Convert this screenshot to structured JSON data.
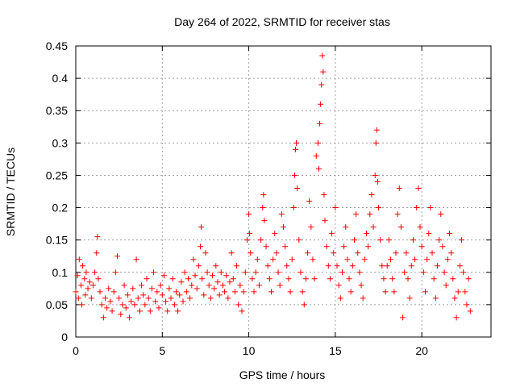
{
  "chart_data": {
    "type": "scatter",
    "title": "Day 264 of 2022, SRMTID for receiver stas",
    "xlabel": "GPS time / hours",
    "ylabel": "SRMTID / TECUs",
    "xlim": [
      0,
      24
    ],
    "ylim": [
      0,
      0.45
    ],
    "grid": true,
    "marker": "+",
    "marker_color": "#ff0000",
    "x_ticks": [
      0,
      5,
      10,
      15,
      20
    ],
    "x_tick_labels": [
      "0",
      "5",
      "10",
      "15",
      "20"
    ],
    "y_ticks": [
      0,
      0.05,
      0.1,
      0.15,
      0.2,
      0.25,
      0.3,
      0.35,
      0.4,
      0.45
    ],
    "y_tick_labels": [
      "0",
      "0.05",
      "0.1",
      "0.15",
      "0.2",
      "0.25",
      "0.3",
      "0.35",
      "0.4",
      "0.45"
    ],
    "series": [
      {
        "name": "SRMTID",
        "points": [
          [
            0.0,
            0.07
          ],
          [
            0.1,
            0.095
          ],
          [
            0.15,
            0.06
          ],
          [
            0.2,
            0.12
          ],
          [
            0.3,
            0.08
          ],
          [
            0.35,
            0.05
          ],
          [
            0.4,
            0.11
          ],
          [
            0.5,
            0.09
          ],
          [
            0.55,
            0.065
          ],
          [
            0.6,
            0.1
          ],
          [
            0.7,
            0.075
          ],
          [
            0.8,
            0.085
          ],
          [
            0.9,
            0.06
          ],
          [
            1.0,
            0.08
          ],
          [
            1.1,
            0.1
          ],
          [
            1.2,
            0.13
          ],
          [
            1.25,
            0.155
          ],
          [
            1.3,
            0.09
          ],
          [
            1.4,
            0.07
          ],
          [
            1.5,
            0.05
          ],
          [
            1.6,
            0.03
          ],
          [
            1.7,
            0.06
          ],
          [
            1.8,
            0.045
          ],
          [
            1.9,
            0.075
          ],
          [
            2.0,
            0.055
          ],
          [
            2.1,
            0.04
          ],
          [
            2.2,
            0.07
          ],
          [
            2.3,
            0.1
          ],
          [
            2.4,
            0.125
          ],
          [
            2.5,
            0.06
          ],
          [
            2.6,
            0.035
          ],
          [
            2.7,
            0.05
          ],
          [
            2.8,
            0.08
          ],
          [
            2.9,
            0.045
          ],
          [
            3.0,
            0.065
          ],
          [
            3.1,
            0.03
          ],
          [
            3.2,
            0.055
          ],
          [
            3.3,
            0.075
          ],
          [
            3.4,
            0.05
          ],
          [
            3.5,
            0.12
          ],
          [
            3.6,
            0.06
          ],
          [
            3.7,
            0.04
          ],
          [
            3.8,
            0.08
          ],
          [
            3.9,
            0.065
          ],
          [
            4.0,
            0.05
          ],
          [
            4.1,
            0.09
          ],
          [
            4.2,
            0.06
          ],
          [
            4.3,
            0.04
          ],
          [
            4.4,
            0.075
          ],
          [
            4.5,
            0.1
          ],
          [
            4.6,
            0.055
          ],
          [
            4.7,
            0.07
          ],
          [
            4.8,
            0.045
          ],
          [
            4.9,
            0.08
          ],
          [
            5.0,
            0.065
          ],
          [
            5.1,
            0.095
          ],
          [
            5.2,
            0.055
          ],
          [
            5.3,
            0.04
          ],
          [
            5.4,
            0.075
          ],
          [
            5.5,
            0.06
          ],
          [
            5.6,
            0.09
          ],
          [
            5.7,
            0.05
          ],
          [
            5.8,
            0.07
          ],
          [
            5.9,
            0.04
          ],
          [
            6.0,
            0.065
          ],
          [
            6.1,
            0.085
          ],
          [
            6.2,
            0.055
          ],
          [
            6.3,
            0.1
          ],
          [
            6.4,
            0.07
          ],
          [
            6.5,
            0.09
          ],
          [
            6.6,
            0.06
          ],
          [
            6.7,
            0.08
          ],
          [
            6.8,
            0.12
          ],
          [
            6.9,
            0.095
          ],
          [
            7.0,
            0.075
          ],
          [
            7.1,
            0.11
          ],
          [
            7.2,
            0.14
          ],
          [
            7.25,
            0.17
          ],
          [
            7.3,
            0.09
          ],
          [
            7.4,
            0.065
          ],
          [
            7.5,
            0.13
          ],
          [
            7.6,
            0.1
          ],
          [
            7.7,
            0.08
          ],
          [
            7.8,
            0.06
          ],
          [
            7.9,
            0.095
          ],
          [
            8.0,
            0.075
          ],
          [
            8.1,
            0.11
          ],
          [
            8.2,
            0.085
          ],
          [
            8.3,
            0.065
          ],
          [
            8.4,
            0.1
          ],
          [
            8.5,
            0.08
          ],
          [
            8.6,
            0.07
          ],
          [
            8.7,
            0.095
          ],
          [
            8.8,
            0.06
          ],
          [
            8.9,
            0.085
          ],
          [
            9.0,
            0.13
          ],
          [
            9.1,
            0.09
          ],
          [
            9.2,
            0.07
          ],
          [
            9.3,
            0.11
          ],
          [
            9.4,
            0.05
          ],
          [
            9.5,
            0.08
          ],
          [
            9.6,
            0.04
          ],
          [
            9.7,
            0.07
          ],
          [
            9.8,
            0.1
          ],
          [
            9.9,
            0.15
          ],
          [
            10.0,
            0.19
          ],
          [
            10.05,
            0.16
          ],
          [
            10.1,
            0.13
          ],
          [
            10.2,
            0.09
          ],
          [
            10.3,
            0.07
          ],
          [
            10.4,
            0.1
          ],
          [
            10.5,
            0.12
          ],
          [
            10.6,
            0.08
          ],
          [
            10.7,
            0.15
          ],
          [
            10.8,
            0.2
          ],
          [
            10.85,
            0.22
          ],
          [
            10.9,
            0.18
          ],
          [
            11.0,
            0.14
          ],
          [
            11.1,
            0.11
          ],
          [
            11.2,
            0.09
          ],
          [
            11.3,
            0.07
          ],
          [
            11.4,
            0.12
          ],
          [
            11.5,
            0.16
          ],
          [
            11.6,
            0.13
          ],
          [
            11.7,
            0.1
          ],
          [
            11.8,
            0.08
          ],
          [
            11.9,
            0.19
          ],
          [
            12.0,
            0.17
          ],
          [
            12.1,
            0.14
          ],
          [
            12.2,
            0.11
          ],
          [
            12.3,
            0.09
          ],
          [
            12.4,
            0.07
          ],
          [
            12.5,
            0.12
          ],
          [
            12.6,
            0.2
          ],
          [
            12.65,
            0.25
          ],
          [
            12.7,
            0.29
          ],
          [
            12.75,
            0.3
          ],
          [
            12.8,
            0.23
          ],
          [
            12.9,
            0.15
          ],
          [
            13.0,
            0.1
          ],
          [
            13.1,
            0.07
          ],
          [
            13.2,
            0.05
          ],
          [
            13.3,
            0.09
          ],
          [
            13.4,
            0.13
          ],
          [
            13.5,
            0.21
          ],
          [
            13.6,
            0.17
          ],
          [
            13.7,
            0.12
          ],
          [
            13.8,
            0.09
          ],
          [
            13.9,
            0.28
          ],
          [
            14.0,
            0.3
          ],
          [
            14.05,
            0.26
          ],
          [
            14.1,
            0.33
          ],
          [
            14.15,
            0.36
          ],
          [
            14.2,
            0.39
          ],
          [
            14.25,
            0.435
          ],
          [
            14.3,
            0.41
          ],
          [
            14.35,
            0.22
          ],
          [
            14.4,
            0.18
          ],
          [
            14.5,
            0.14
          ],
          [
            14.6,
            0.11
          ],
          [
            14.7,
            0.09
          ],
          [
            14.8,
            0.16
          ],
          [
            14.9,
            0.13
          ],
          [
            15.0,
            0.2
          ],
          [
            15.1,
            0.11
          ],
          [
            15.2,
            0.08
          ],
          [
            15.3,
            0.06
          ],
          [
            15.4,
            0.1
          ],
          [
            15.5,
            0.14
          ],
          [
            15.6,
            0.17
          ],
          [
            15.7,
            0.12
          ],
          [
            15.8,
            0.09
          ],
          [
            15.9,
            0.07
          ],
          [
            16.0,
            0.11
          ],
          [
            16.1,
            0.15
          ],
          [
            16.2,
            0.19
          ],
          [
            16.3,
            0.13
          ],
          [
            16.4,
            0.1
          ],
          [
            16.5,
            0.08
          ],
          [
            16.6,
            0.06
          ],
          [
            16.7,
            0.12
          ],
          [
            16.8,
            0.16
          ],
          [
            16.9,
            0.14
          ],
          [
            17.0,
            0.19
          ],
          [
            17.1,
            0.22
          ],
          [
            17.2,
            0.17
          ],
          [
            17.3,
            0.25
          ],
          [
            17.35,
            0.3
          ],
          [
            17.4,
            0.32
          ],
          [
            17.45,
            0.24
          ],
          [
            17.5,
            0.2
          ],
          [
            17.6,
            0.15
          ],
          [
            17.7,
            0.11
          ],
          [
            17.8,
            0.09
          ],
          [
            17.9,
            0.07
          ],
          [
            18.0,
            0.11
          ],
          [
            18.1,
            0.15
          ],
          [
            18.2,
            0.12
          ],
          [
            18.3,
            0.09
          ],
          [
            18.4,
            0.07
          ],
          [
            18.5,
            0.13
          ],
          [
            18.6,
            0.19
          ],
          [
            18.7,
            0.23
          ],
          [
            18.8,
            0.17
          ],
          [
            18.9,
            0.03
          ],
          [
            19.0,
            0.1
          ],
          [
            19.1,
            0.13
          ],
          [
            19.2,
            0.09
          ],
          [
            19.3,
            0.06
          ],
          [
            19.4,
            0.11
          ],
          [
            19.5,
            0.15
          ],
          [
            19.6,
            0.12
          ],
          [
            19.7,
            0.2
          ],
          [
            19.8,
            0.23
          ],
          [
            19.9,
            0.17
          ],
          [
            20.0,
            0.14
          ],
          [
            20.1,
            0.1
          ],
          [
            20.2,
            0.07
          ],
          [
            20.3,
            0.12
          ],
          [
            20.4,
            0.16
          ],
          [
            20.5,
            0.2
          ],
          [
            20.6,
            0.13
          ],
          [
            20.7,
            0.09
          ],
          [
            20.8,
            0.06
          ],
          [
            20.9,
            0.11
          ],
          [
            21.0,
            0.15
          ],
          [
            21.1,
            0.19
          ],
          [
            21.2,
            0.14
          ],
          [
            21.3,
            0.1
          ],
          [
            21.4,
            0.08
          ],
          [
            21.5,
            0.12
          ],
          [
            21.6,
            0.16
          ],
          [
            21.7,
            0.13
          ],
          [
            21.8,
            0.09
          ],
          [
            21.9,
            0.06
          ],
          [
            22.0,
            0.03
          ],
          [
            22.1,
            0.07
          ],
          [
            22.2,
            0.11
          ],
          [
            22.3,
            0.15
          ],
          [
            22.4,
            0.1
          ],
          [
            22.5,
            0.07
          ],
          [
            22.6,
            0.05
          ],
          [
            22.7,
            0.09
          ],
          [
            22.8,
            0.04
          ]
        ]
      }
    ]
  }
}
